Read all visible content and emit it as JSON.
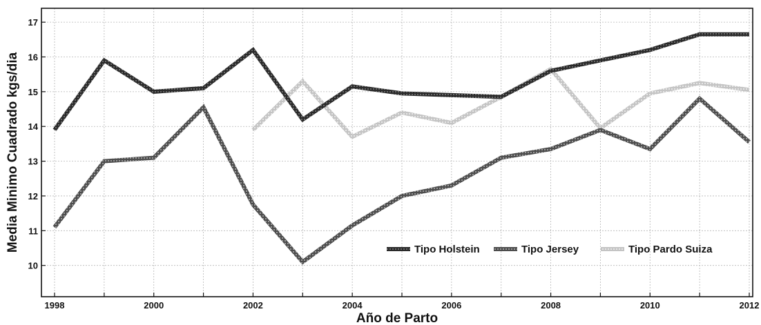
{
  "chart_data": {
    "type": "line",
    "title": "",
    "xlabel": "Año de Parto",
    "ylabel": "Media Minimo Cuadrado kgs/dia",
    "xlim": [
      1998,
      2012
    ],
    "ylim": [
      9.1,
      17.4
    ],
    "grid": true,
    "legend_position": "bottom-right",
    "x_ticks": [
      1998,
      2000,
      2002,
      2004,
      2006,
      2008,
      2010,
      2012
    ],
    "y_ticks": [
      10,
      11,
      12,
      13,
      14,
      15,
      16,
      17
    ],
    "series": [
      {
        "name": "Tipo Holstein",
        "color": "#2a2a2a",
        "points": [
          {
            "x": 1998,
            "y": 13.9
          },
          {
            "x": 1999,
            "y": 15.9
          },
          {
            "x": 2000,
            "y": 15.0
          },
          {
            "x": 2001,
            "y": 15.1
          },
          {
            "x": 2002,
            "y": 16.2
          },
          {
            "x": 2003,
            "y": 14.2
          },
          {
            "x": 2004,
            "y": 15.15
          },
          {
            "x": 2005,
            "y": 14.95
          },
          {
            "x": 2006,
            "y": 14.9
          },
          {
            "x": 2007,
            "y": 14.85
          },
          {
            "x": 2008,
            "y": 15.6
          },
          {
            "x": 2009,
            "y": 15.9
          },
          {
            "x": 2010,
            "y": 16.2
          },
          {
            "x": 2011,
            "y": 16.65
          },
          {
            "x": 2012,
            "y": 16.65
          }
        ]
      },
      {
        "name": "Tipo Jersey",
        "color": "#555555",
        "points": [
          {
            "x": 1998,
            "y": 11.1
          },
          {
            "x": 1999,
            "y": 13.0
          },
          {
            "x": 2000,
            "y": 13.1
          },
          {
            "x": 2001,
            "y": 14.55
          },
          {
            "x": 2002,
            "y": 11.75
          },
          {
            "x": 2003,
            "y": 10.1
          },
          {
            "x": 2004,
            "y": 11.15
          },
          {
            "x": 2005,
            "y": 12.0
          },
          {
            "x": 2006,
            "y": 12.3
          },
          {
            "x": 2007,
            "y": 13.1
          },
          {
            "x": 2008,
            "y": 13.35
          },
          {
            "x": 2009,
            "y": 13.9
          },
          {
            "x": 2010,
            "y": 13.35
          },
          {
            "x": 2011,
            "y": 14.8
          },
          {
            "x": 2012,
            "y": 13.55
          }
        ]
      },
      {
        "name": "Tipo Pardo Suiza",
        "color": "#c8c8c8",
        "points": [
          {
            "x": 2002,
            "y": 13.9
          },
          {
            "x": 2003,
            "y": 15.3
          },
          {
            "x": 2004,
            "y": 13.7
          },
          {
            "x": 2005,
            "y": 14.4
          },
          {
            "x": 2006,
            "y": 14.1
          },
          {
            "x": 2007,
            "y": 14.85
          },
          {
            "x": 2008,
            "y": 15.65
          },
          {
            "x": 2009,
            "y": 13.95
          },
          {
            "x": 2010,
            "y": 14.95
          },
          {
            "x": 2011,
            "y": 15.25
          },
          {
            "x": 2012,
            "y": 15.05
          }
        ]
      }
    ]
  }
}
